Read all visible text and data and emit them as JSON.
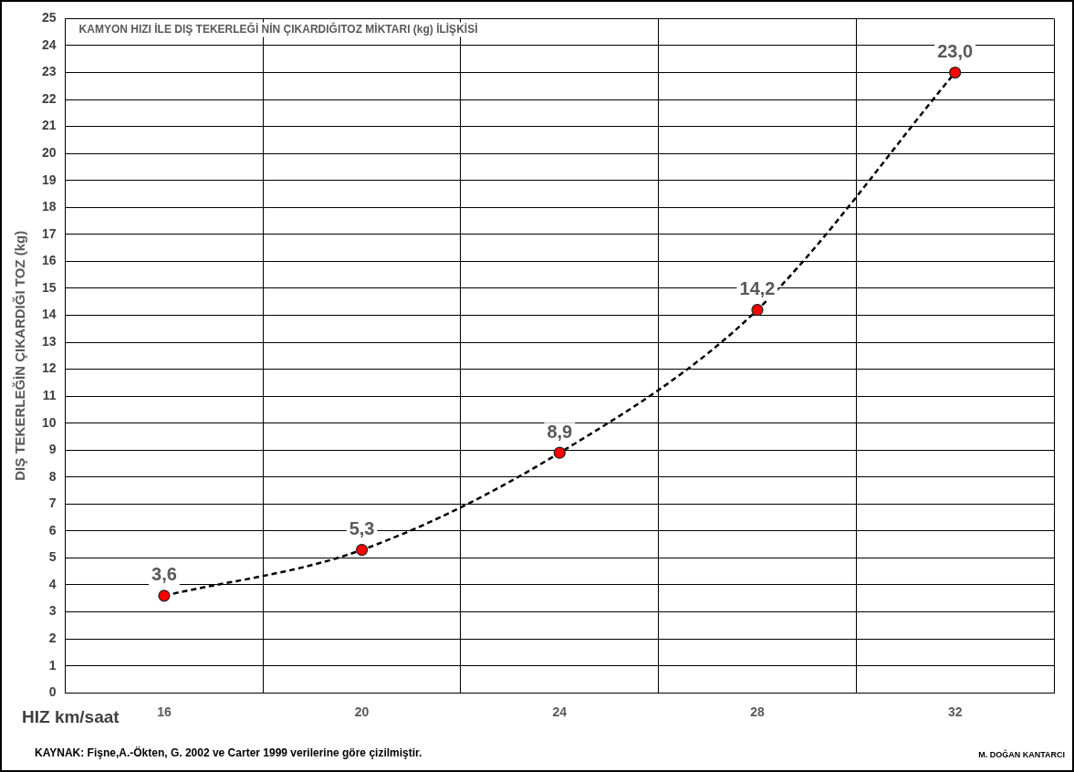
{
  "chart_data": {
    "type": "line",
    "title": "KAMYON HIZI İLE DIŞ TEKERLEĞİ NİN ÇIKARDIĞITOZ MİKTARI (kg) İLİŞKİSİ",
    "xlabel": "HIZ km/saat",
    "ylabel": "DIŞ TEKERLEĞİN ÇIKARDIĞI TOZ (kg)",
    "categories": [
      "16",
      "20",
      "24",
      "28",
      "32"
    ],
    "series": [
      {
        "color": "#ff0000",
        "values": [
          3.6,
          5.3,
          8.9,
          14.2,
          23.0
        ],
        "value_labels": [
          "3,6",
          "5,3",
          "8,9",
          "14,2",
          "23,0"
        ]
      }
    ],
    "ylim": [
      0,
      25
    ],
    "yticks": [
      0,
      1,
      2,
      3,
      4,
      5,
      6,
      7,
      8,
      9,
      10,
      11,
      12,
      13,
      14,
      15,
      16,
      17,
      18,
      19,
      20,
      21,
      22,
      23,
      24,
      25
    ],
    "grid": true,
    "legend": false,
    "marker": "circle",
    "line_style": "dashed",
    "annotations": [
      "KAYNAK: Fişne,A.-Ökten, G. 2002 ve Carter 1999 verilerine göre çizilmiştir.",
      "M. DOĞAN KANTARCI"
    ]
  }
}
